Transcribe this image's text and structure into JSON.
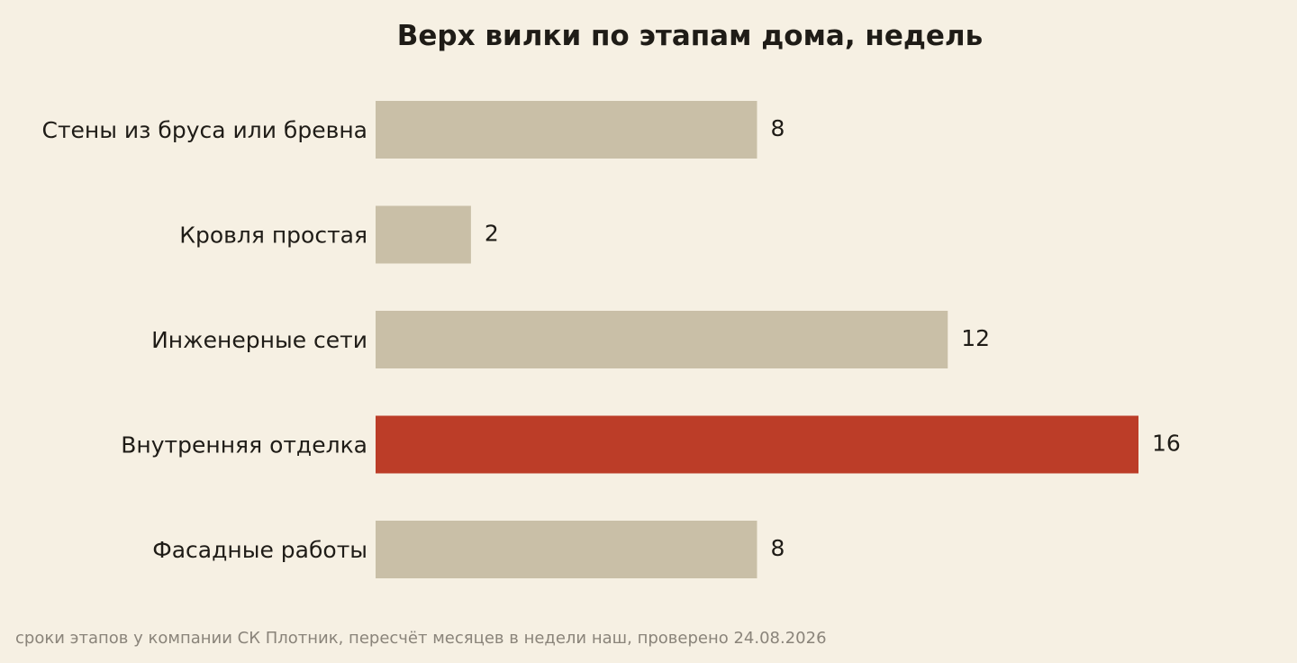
{
  "chart_data": {
    "type": "bar",
    "orientation": "horizontal",
    "title": "Верх вилки по этапам дома, недель",
    "categories": [
      "Стены из бруса или бревна",
      "Кровля простая",
      "Инженерные сети",
      "Внутренняя отделка",
      "Фасадные работы"
    ],
    "values": [
      8,
      2,
      12,
      16,
      8
    ],
    "highlight_index": 3,
    "xlim": [
      0,
      16
    ],
    "grid": false,
    "colors": {
      "bar": "#c9bfa7",
      "highlight": "#bc3d28",
      "background": "#f6f0e3"
    }
  },
  "footer": {
    "source": "сроки этапов у компании СК Плотник, пересчёт месяцев в недели наш, проверено 24.08.2026"
  }
}
